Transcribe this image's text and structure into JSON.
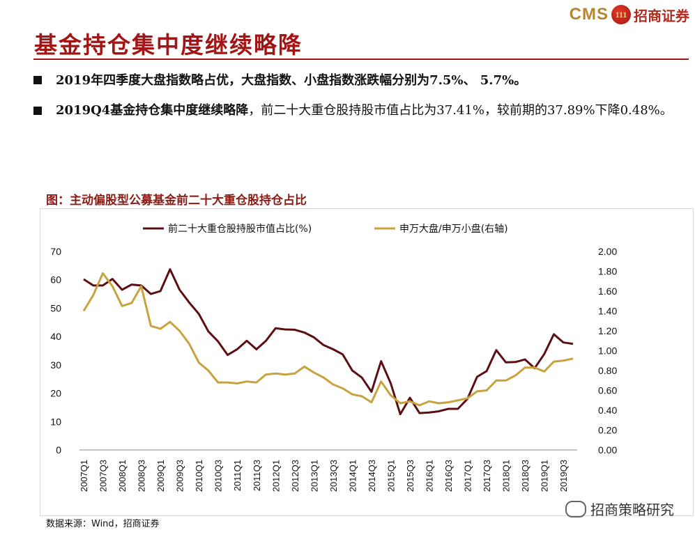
{
  "logo": {
    "cms": "CMS",
    "mark": "111",
    "name": "招商证券"
  },
  "title": "基金持仓集中度继续略降",
  "bullets": [
    {
      "bold": "2019年四季度大盘指数略占优，大盘指数、小盘指数涨跌幅分别为7.5%、 5.7%。",
      "normal": ""
    },
    {
      "bold": "2019Q4基金持仓集中度继续略降",
      "normal": "，前二十大重仓股持股市值占比为37.41%，较前期的37.89%下降0.48%。"
    }
  ],
  "colors": {
    "series1": "#5c0f12",
    "series2": "#c8a23c",
    "title": "#a31515"
  },
  "chart_data": {
    "type": "line",
    "title": "图：主动偏股型公募基金前二十大重仓股持仓占比",
    "legend_position": "top",
    "ylim_left": [
      0,
      70
    ],
    "ylim_right": [
      0.0,
      2.0
    ],
    "yticks_left": [
      "0",
      "10",
      "20",
      "30",
      "40",
      "50",
      "60",
      "70"
    ],
    "yticks_right": [
      "0.00",
      "0.20",
      "0.40",
      "0.60",
      "0.80",
      "1.00",
      "1.20",
      "1.40",
      "1.60",
      "1.80",
      "2.00"
    ],
    "x": [
      "2007Q1",
      "2007Q2",
      "2007Q3",
      "2007Q4",
      "2008Q1",
      "2008Q2",
      "2008Q3",
      "2008Q4",
      "2009Q1",
      "2009Q2",
      "2009Q3",
      "2009Q4",
      "2010Q1",
      "2010Q2",
      "2010Q3",
      "2010Q4",
      "2011Q1",
      "2011Q2",
      "2011Q3",
      "2011Q4",
      "2012Q1",
      "2012Q2",
      "2012Q3",
      "2012Q4",
      "2013Q1",
      "2013Q2",
      "2013Q3",
      "2013Q4",
      "2014Q1",
      "2014Q2",
      "2014Q3",
      "2014Q4",
      "2015Q1",
      "2015Q2",
      "2015Q3",
      "2015Q4",
      "2016Q1",
      "2016Q2",
      "2016Q3",
      "2016Q4",
      "2017Q1",
      "2017Q2",
      "2017Q3",
      "2017Q4",
      "2018Q1",
      "2018Q2",
      "2018Q3",
      "2018Q4",
      "2019Q1",
      "2019Q2",
      "2019Q3",
      "2019Q4"
    ],
    "xtick_labels": [
      "2007Q1",
      "2007Q3",
      "2008Q1",
      "2008Q3",
      "2009Q1",
      "2009Q3",
      "2010Q1",
      "2010Q3",
      "2011Q1",
      "2011Q3",
      "2012Q1",
      "2012Q3",
      "2013Q1",
      "2013Q3",
      "2014Q1",
      "2014Q3",
      "2015Q1",
      "2015Q3",
      "2016Q1",
      "2016Q3",
      "2017Q1",
      "2017Q3",
      "2018Q1",
      "2018Q3",
      "2019Q1",
      "2019Q3"
    ],
    "series": [
      {
        "name": "前二十大重仓股持股市值占比(%)",
        "axis": "left",
        "values": [
          60.2,
          58.0,
          58.0,
          60.3,
          56.5,
          58.3,
          58.0,
          55.0,
          56.0,
          63.7,
          56.5,
          52.0,
          48.0,
          41.8,
          38.3,
          33.5,
          35.5,
          38.5,
          35.5,
          38.5,
          42.9,
          42.5,
          42.4,
          41.4,
          39.7,
          37.0,
          35.5,
          33.7,
          28.0,
          25.5,
          20.5,
          31.3,
          23.5,
          12.6,
          18.4,
          13.0,
          13.2,
          13.6,
          14.5,
          14.5,
          18.0,
          25.8,
          27.8,
          35.2,
          30.9,
          31.0,
          31.9,
          28.8,
          33.8,
          40.8,
          37.89,
          37.41
        ]
      },
      {
        "name": "申万大盘/申万小盘(右轴)",
        "axis": "right",
        "values": [
          1.4,
          1.56,
          1.78,
          1.65,
          1.45,
          1.48,
          1.65,
          1.25,
          1.22,
          1.29,
          1.2,
          1.07,
          0.88,
          0.8,
          0.68,
          0.68,
          0.67,
          0.69,
          0.68,
          0.76,
          0.77,
          0.76,
          0.77,
          0.84,
          0.78,
          0.73,
          0.66,
          0.62,
          0.56,
          0.54,
          0.48,
          0.69,
          0.55,
          0.47,
          0.49,
          0.45,
          0.49,
          0.47,
          0.48,
          0.5,
          0.52,
          0.59,
          0.6,
          0.7,
          0.7,
          0.75,
          0.83,
          0.83,
          0.79,
          0.89,
          0.9,
          0.92
        ]
      }
    ]
  },
  "source": "数据来源：Wind，招商证券",
  "watermark": "招商策略研究"
}
